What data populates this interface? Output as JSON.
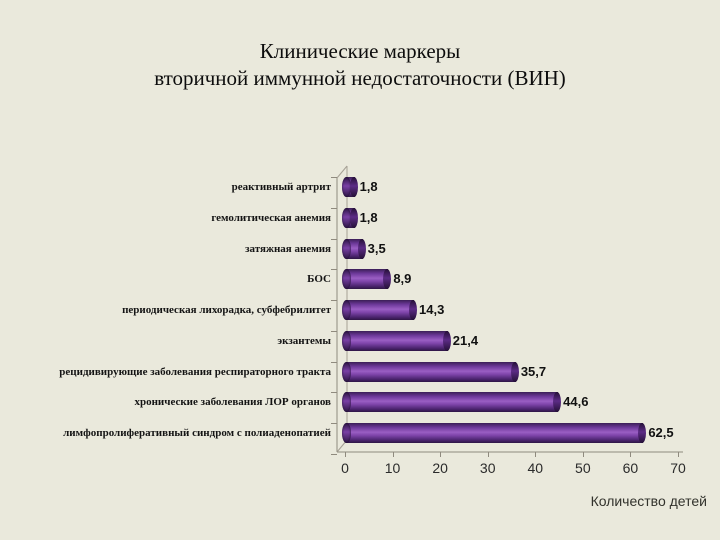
{
  "title": {
    "line1": "Клинические маркеры",
    "line2": "вторичной иммунной недостаточности (ВИН)"
  },
  "chart_data": {
    "type": "bar",
    "orientation": "horizontal",
    "style": "3d-cylinder",
    "title": "Клинические маркеры вторичной иммунной недостаточности (ВИН)",
    "categories": [
      "реактивный артрит",
      "гемолитическая анемия",
      "затяжная анемия",
      "БОС",
      "периодическая лихорадка, субфебрилитет",
      "экзантемы",
      "рецидивирующие заболевания респираторного тракта",
      "хронические заболевания ЛОР органов",
      "лимфопролиферативный синдром с полиаденопатией"
    ],
    "values": [
      1.8,
      1.8,
      3.5,
      8.9,
      14.3,
      21.4,
      35.7,
      44.6,
      62.5
    ],
    "value_labels": [
      "1,8",
      "1,8",
      "3,5",
      "8,9",
      "14,3",
      "21,4",
      "35,7",
      "44,6",
      "62,5"
    ],
    "x_ticks": [
      0,
      10,
      20,
      30,
      40,
      50,
      60,
      70
    ],
    "xlim": [
      0,
      70
    ],
    "xlabel": "Количество детей",
    "ylabel": "",
    "grid": false,
    "legend": null,
    "bar_color": "#7b3fa0",
    "background_color": "#eae9dc",
    "axis_color": "#8f8a7e"
  }
}
